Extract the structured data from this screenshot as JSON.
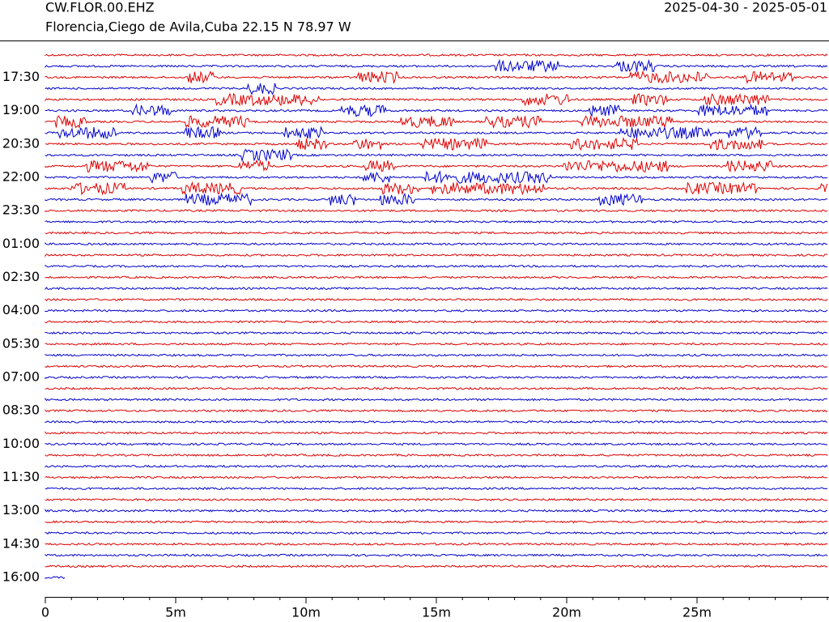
{
  "chart_data": {
    "type": "helicorder",
    "title": "CW.FLOR.00.EHZ",
    "subtitle": "Florencia,Ciego de Avila,Cuba  22.15 N 78.97 W",
    "date_range": "2025-04-30 - 2025-05-01",
    "categories": [
      null,
      null,
      "17:30",
      null,
      null,
      "19:00",
      null,
      null,
      "20:30",
      null,
      null,
      "22:00",
      null,
      null,
      "23:30",
      null,
      null,
      "01:00",
      null,
      null,
      "02:30",
      null,
      null,
      "04:00",
      null,
      null,
      "05:30",
      null,
      null,
      "07:00",
      null,
      null,
      "08:30",
      null,
      null,
      "10:00",
      null,
      null,
      "11:30",
      null,
      null,
      "13:00",
      null,
      null,
      "14:30",
      null,
      null,
      "16:00"
    ],
    "colors": [
      "#dd0000",
      "#0000cc"
    ],
    "xlim": [
      0,
      30
    ],
    "xticks": [
      0,
      {
        "value": 5,
        "label": "5m"
      },
      {
        "value": 10,
        "label": "10m"
      },
      {
        "value": 15,
        "label": "15m"
      },
      {
        "value": 20,
        "label": "20m"
      },
      {
        "value": 25,
        "label": "25m"
      }
    ]
  }
}
